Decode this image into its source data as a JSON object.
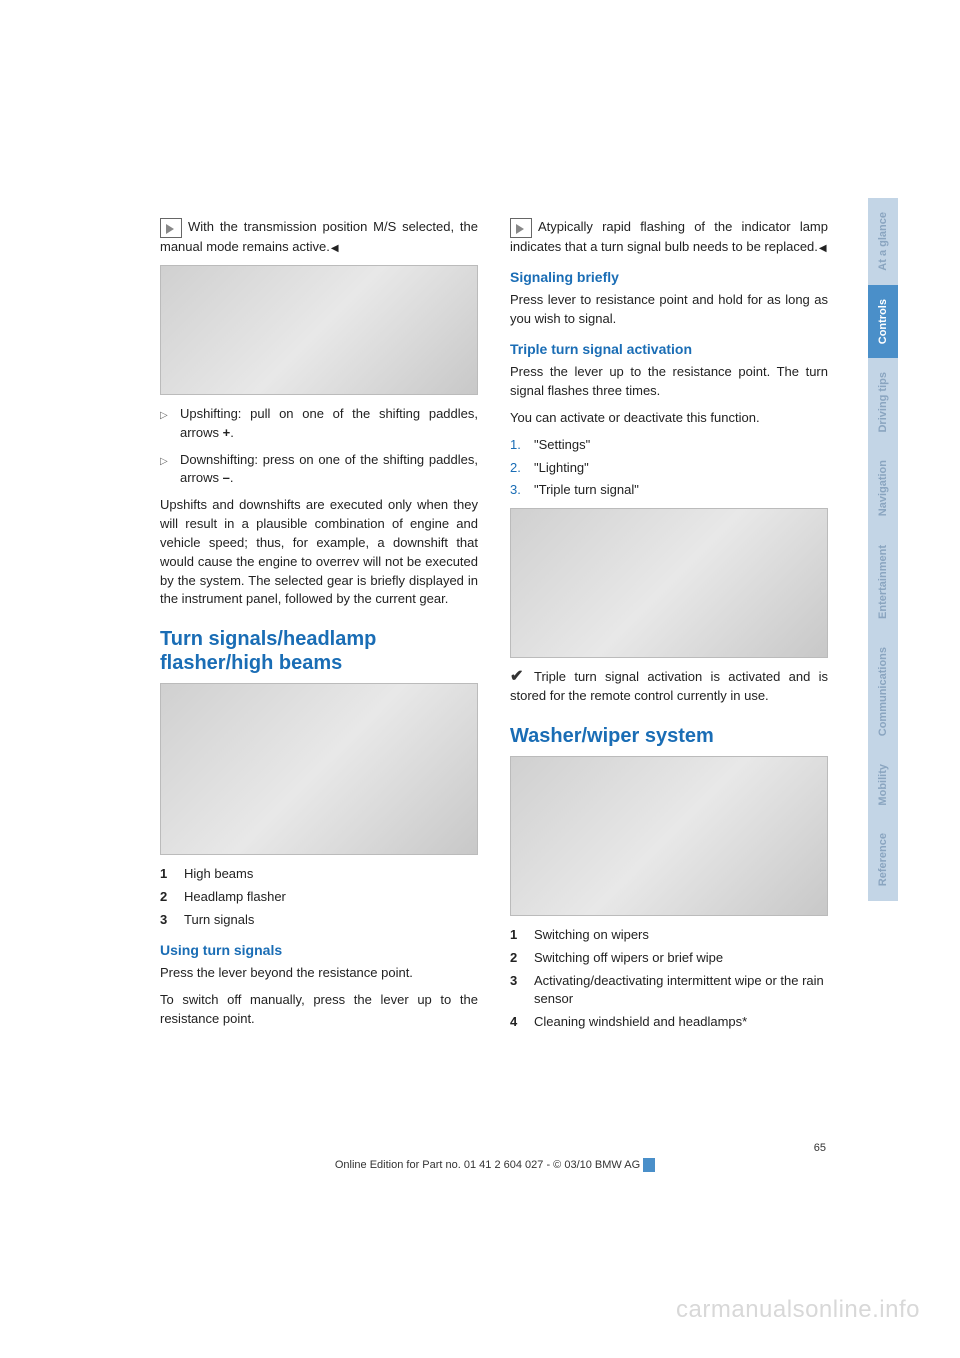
{
  "colors": {
    "heading": "#1a6db5",
    "text": "#222222",
    "tab_active_bg": "#4a8fc9",
    "tab_active_fg": "#ffffff",
    "tab_inactive_bg": "#c3d5e6",
    "tab_inactive_fg": "#8aa5c0",
    "watermark": "#d8d8d8"
  },
  "left": {
    "note1a": "With the transmission position M/S selected, the manual mode remains",
    "note1b": "active.",
    "bullets": [
      {
        "text": "Upshifting: pull on one of the shifting paddles, arrows ",
        "suffix": "+",
        "post": "."
      },
      {
        "text": "Downshifting: press on one of the shifting paddles, arrows ",
        "suffix": "–",
        "post": "."
      }
    ],
    "para_upshifts": "Upshifts and downshifts are executed only when they will result in a plausible combination of engine and vehicle speed; thus, for example, a downshift that would cause the engine to overrev will not be executed by the system. The selected gear is briefly displayed in the instrument panel, followed by the current gear.",
    "section_title": "Turn signals/headlamp flasher/high beams",
    "legend": [
      {
        "n": "1",
        "t": "High beams"
      },
      {
        "n": "2",
        "t": "Headlamp flasher"
      },
      {
        "n": "3",
        "t": "Turn signals"
      }
    ],
    "sub_using": "Using turn signals",
    "using_p1": "Press the lever beyond the resistance point.",
    "using_p2": "To switch off manually, press the lever up to the resistance point."
  },
  "right": {
    "note2a": "Atypically rapid flashing of the indicator lamp indicates that a turn signal bulb",
    "note2b": "needs to be replaced.",
    "sub_signaling": "Signaling briefly",
    "signaling_p": "Press lever to resistance point and hold for as long as you wish to signal.",
    "sub_triple": "Triple turn signal activation",
    "triple_p1": "Press the lever up to the resistance point. The turn signal flashes three times.",
    "triple_p2": "You can activate or deactivate this function.",
    "steps": [
      {
        "n": "1.",
        "t": "\"Settings\""
      },
      {
        "n": "2.",
        "t": "\"Lighting\""
      },
      {
        "n": "3.",
        "t": "\"Triple turn signal\""
      }
    ],
    "triple_conf": "Triple turn signal activation is activated and is stored for the remote control currently in use.",
    "section_title": "Washer/wiper system",
    "legend2": [
      {
        "n": "1",
        "t": "Switching on wipers"
      },
      {
        "n": "2",
        "t": "Switching off wipers or brief wipe"
      },
      {
        "n": "3",
        "t": "Activating/deactivating intermittent wipe or the rain sensor"
      },
      {
        "n": "4",
        "t": "Cleaning windshield and headlamps*"
      }
    ]
  },
  "tabs": [
    {
      "label": "At a glance",
      "active": false
    },
    {
      "label": "Controls",
      "active": true
    },
    {
      "label": "Driving tips",
      "active": false
    },
    {
      "label": "Navigation",
      "active": false
    },
    {
      "label": "Entertainment",
      "active": false
    },
    {
      "label": "Communications",
      "active": false
    },
    {
      "label": "Mobility",
      "active": false
    },
    {
      "label": "Reference",
      "active": false
    }
  ],
  "page_number": "65",
  "footer": "Online Edition for Part no. 01 41 2 604 027 - © 03/10 BMW AG",
  "watermark": "carmanualsonline.info"
}
